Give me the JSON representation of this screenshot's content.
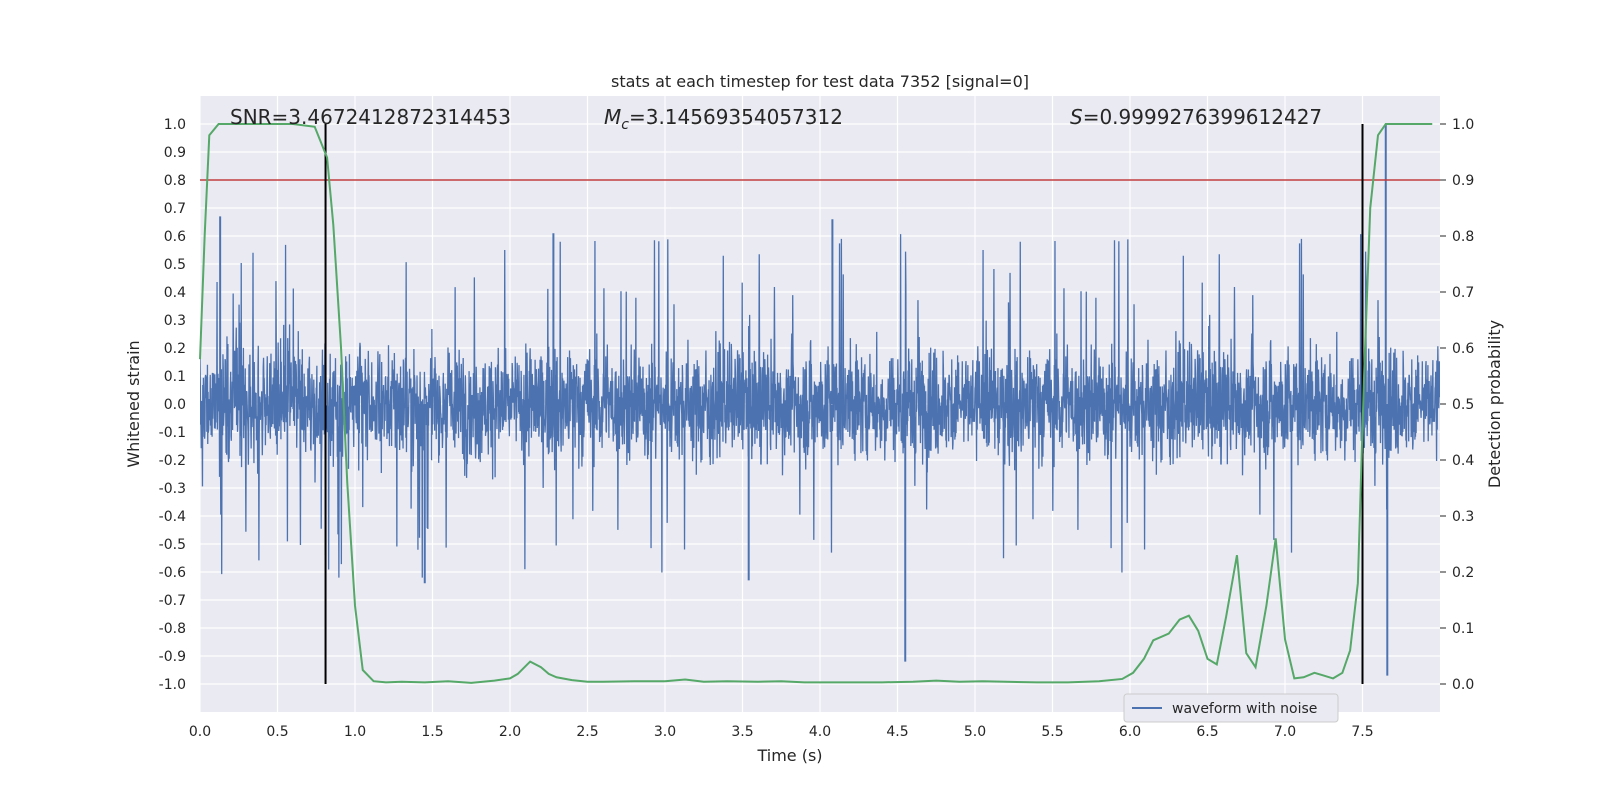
{
  "chart_data": {
    "type": "line",
    "title": "stats at each timestep for test data 7352 [signal=0]",
    "xlabel": "Time (s)",
    "ylabel_left": "Whitened strain",
    "ylabel_right": "Detection probability",
    "xlim": [
      0.0,
      8.0
    ],
    "ylim_left": [
      -1.1,
      1.1
    ],
    "ylim_right": [
      -0.05,
      1.05
    ],
    "xticks": [
      "0.0",
      "0.5",
      "1.0",
      "1.5",
      "2.0",
      "2.5",
      "3.0",
      "3.5",
      "4.0",
      "4.5",
      "5.0",
      "5.5",
      "6.0",
      "6.5",
      "7.0",
      "7.5"
    ],
    "yticks_left": [
      "-1.0",
      "-0.9",
      "-0.8",
      "-0.7",
      "-0.6",
      "-0.5",
      "-0.4",
      "-0.3",
      "-0.2",
      "-0.1",
      "0.0",
      "0.1",
      "0.2",
      "0.3",
      "0.4",
      "0.5",
      "0.6",
      "0.7",
      "0.8",
      "0.9",
      "1.0"
    ],
    "yticks_right": [
      "0.0",
      "0.1",
      "0.2",
      "0.3",
      "0.4",
      "0.5",
      "0.6",
      "0.7",
      "0.8",
      "0.9",
      "1.0"
    ],
    "grid": true,
    "annotations": {
      "snr": "SNR=3.4672412872314453",
      "mc_symbol": "M",
      "mc_subscript": "c",
      "mc_value": "=3.14569354057312",
      "s_symbol": "S",
      "s_value": "=0.9999276399612427"
    },
    "threshold": {
      "y": 0.9,
      "axis": "right",
      "color": "#c03d3e"
    },
    "vertical_lines": [
      0.81,
      7.5
    ],
    "legend": {
      "placement": "bottom-right",
      "entries": [
        "waveform with noise"
      ]
    },
    "series": [
      {
        "name": "waveform with noise",
        "axis": "left",
        "color": "#4c72b0",
        "style": "dense noise, amplitude ~±0.3 with spikes up to ±0.65",
        "notable_spikes": [
          {
            "x": 0.13,
            "y": 0.67
          },
          {
            "x": 1.45,
            "y": -0.64
          },
          {
            "x": 2.28,
            "y": 0.61
          },
          {
            "x": 3.54,
            "y": -0.63
          },
          {
            "x": 4.08,
            "y": 0.66
          },
          {
            "x": 4.55,
            "y": -0.92
          },
          {
            "x": 7.65,
            "y": 1.0
          },
          {
            "x": 7.66,
            "y": -0.97
          }
        ]
      },
      {
        "name": "detection probability",
        "axis": "right",
        "color": "#55a868",
        "x": [
          0.0,
          0.03,
          0.06,
          0.12,
          0.2,
          0.4,
          0.6,
          0.74,
          0.82,
          0.86,
          0.91,
          0.95,
          1.0,
          1.05,
          1.12,
          1.2,
          1.3,
          1.45,
          1.6,
          1.75,
          1.9,
          2.0,
          2.05,
          2.13,
          2.2,
          2.25,
          2.3,
          2.4,
          2.5,
          2.6,
          2.8,
          3.0,
          3.13,
          3.25,
          3.4,
          3.6,
          3.75,
          3.9,
          4.0,
          4.2,
          4.4,
          4.6,
          4.75,
          4.9,
          5.05,
          5.2,
          5.4,
          5.6,
          5.8,
          5.95,
          6.02,
          6.09,
          6.15,
          6.25,
          6.32,
          6.38,
          6.44,
          6.5,
          6.56,
          6.62,
          6.69,
          6.75,
          6.81,
          6.88,
          6.94,
          7.0,
          7.06,
          7.12,
          7.19,
          7.25,
          7.31,
          7.37,
          7.42,
          7.47,
          7.51,
          7.55,
          7.6,
          7.65,
          7.7,
          7.8,
          7.95
        ],
        "y": [
          0.58,
          0.8,
          0.98,
          1.0,
          1.0,
          1.0,
          1.0,
          0.995,
          0.94,
          0.82,
          0.6,
          0.36,
          0.14,
          0.025,
          0.005,
          0.003,
          0.004,
          0.003,
          0.005,
          0.002,
          0.006,
          0.01,
          0.018,
          0.04,
          0.03,
          0.018,
          0.012,
          0.007,
          0.004,
          0.004,
          0.005,
          0.005,
          0.008,
          0.004,
          0.005,
          0.004,
          0.005,
          0.003,
          0.003,
          0.003,
          0.003,
          0.004,
          0.006,
          0.004,
          0.005,
          0.004,
          0.003,
          0.003,
          0.005,
          0.009,
          0.02,
          0.045,
          0.078,
          0.09,
          0.115,
          0.122,
          0.095,
          0.045,
          0.035,
          0.12,
          0.23,
          0.055,
          0.03,
          0.14,
          0.26,
          0.08,
          0.01,
          0.012,
          0.02,
          0.015,
          0.01,
          0.02,
          0.06,
          0.18,
          0.55,
          0.85,
          0.98,
          1.0,
          1.0,
          1.0,
          1.0
        ]
      }
    ]
  }
}
